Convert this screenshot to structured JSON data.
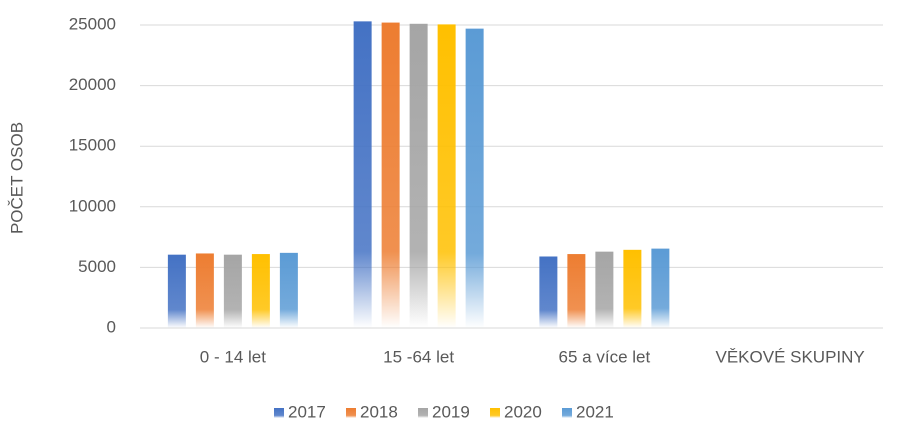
{
  "chart_data": {
    "type": "bar",
    "y_label": "POČET OSOB",
    "x_label": "VĚKOVÉ SKUPINY",
    "categories": [
      "0 - 14 let",
      "15 -64 let",
      "65 a více let"
    ],
    "series": [
      {
        "name": "2017",
        "color": "#4472c4",
        "values": [
          6050,
          25300,
          5900
        ]
      },
      {
        "name": "2018",
        "color": "#ed7d31",
        "values": [
          6150,
          25200,
          6100
        ]
      },
      {
        "name": "2019",
        "color": "#a5a5a5",
        "values": [
          6050,
          25100,
          6300
        ]
      },
      {
        "name": "2020",
        "color": "#ffc000",
        "values": [
          6100,
          25050,
          6450
        ]
      },
      {
        "name": "2021",
        "color": "#5b9bd5",
        "values": [
          6200,
          24700,
          6550
        ]
      }
    ],
    "ylim": [
      0,
      25000
    ],
    "yticks": [
      0,
      5000,
      10000,
      15000,
      20000,
      25000
    ],
    "grid": true,
    "legend": "bottom"
  }
}
